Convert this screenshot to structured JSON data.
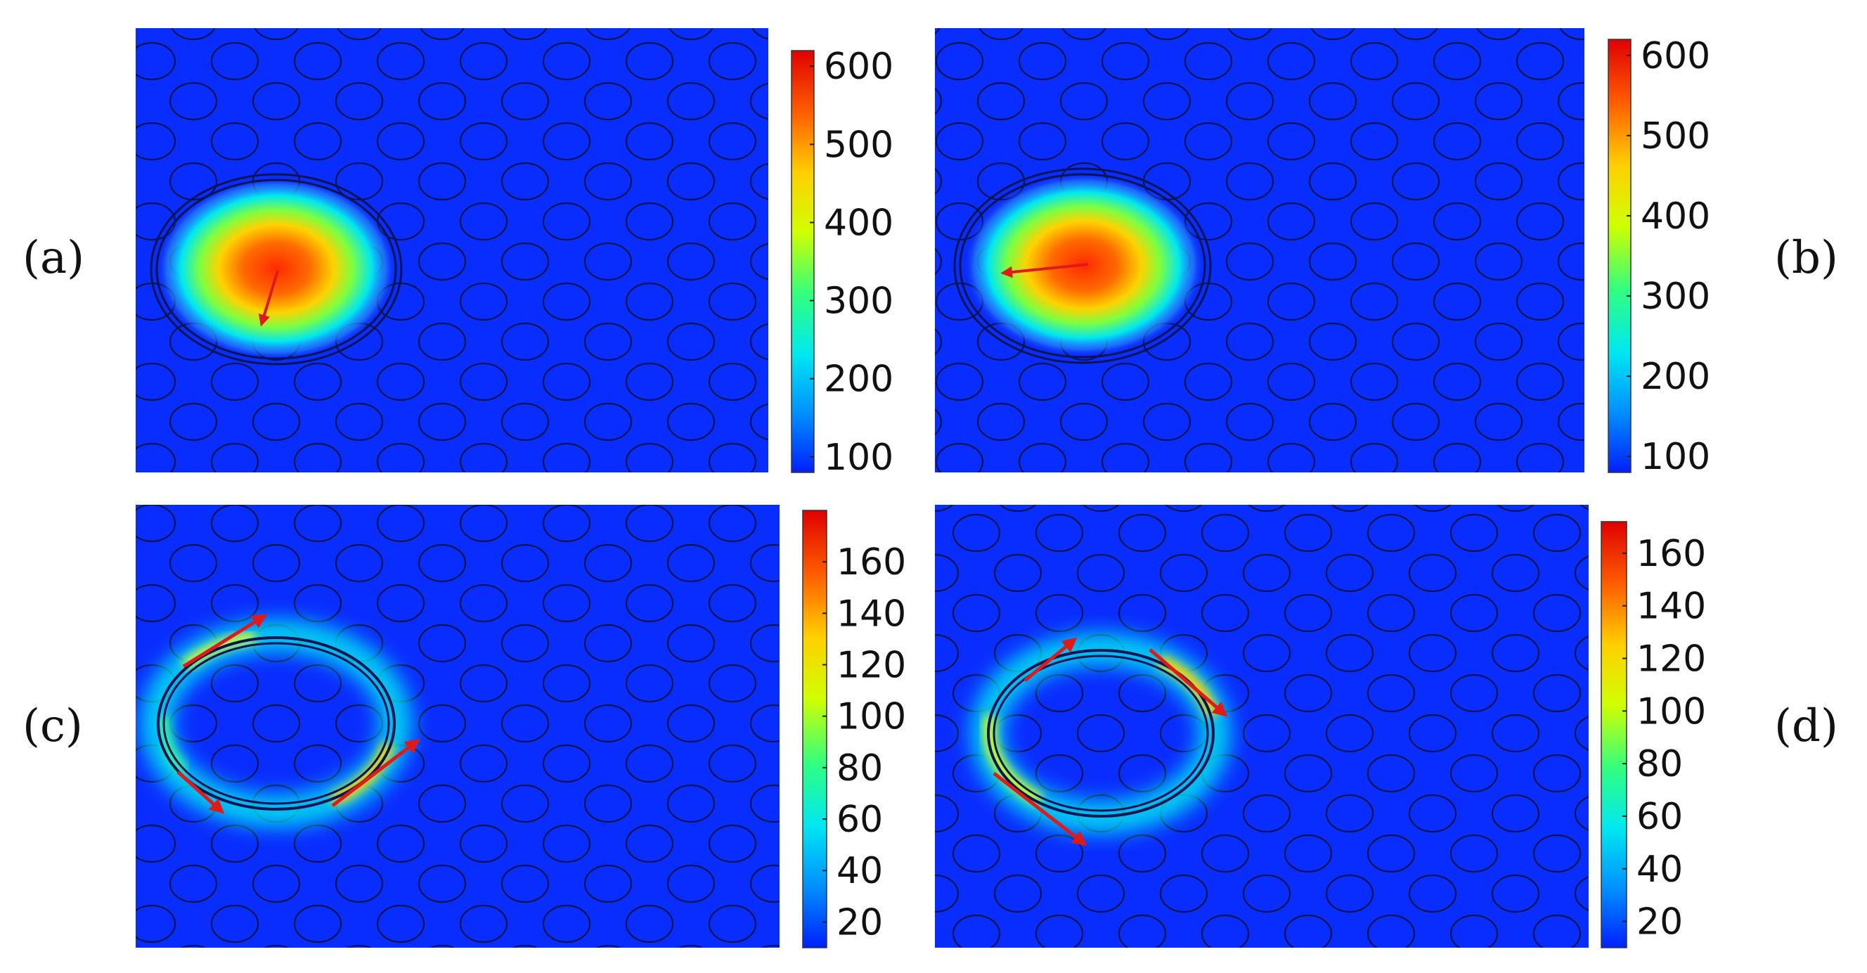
{
  "panels": [
    {
      "label": "(a)",
      "mode": "core",
      "colorbar": {
        "ticks": [
          "100",
          "200",
          "300",
          "400",
          "500",
          "600"
        ],
        "min": 80,
        "max": 620
      }
    },
    {
      "label": "(b)",
      "mode": "core",
      "colorbar": {
        "ticks": [
          "100",
          "200",
          "300",
          "400",
          "500",
          "600"
        ],
        "min": 80,
        "max": 620
      }
    },
    {
      "label": "(c)",
      "mode": "ring",
      "colorbar": {
        "ticks": [
          "20",
          "40",
          "60",
          "80",
          "100",
          "120",
          "140",
          "160"
        ],
        "min": 10,
        "max": 180
      }
    },
    {
      "label": "(d)",
      "mode": "ring",
      "colorbar": {
        "ticks": [
          "20",
          "40",
          "60",
          "80",
          "100",
          "120",
          "140",
          "160"
        ],
        "min": 10,
        "max": 172
      }
    }
  ],
  "colors": {
    "background": "#0a2dff",
    "hole_outline": "#0a1450",
    "arrow": "#e01a1a",
    "colormap": [
      "#0020ff",
      "#0090ff",
      "#00e8f0",
      "#30ff80",
      "#d0ff00",
      "#ffd000",
      "#ff6000",
      "#e00000"
    ]
  }
}
